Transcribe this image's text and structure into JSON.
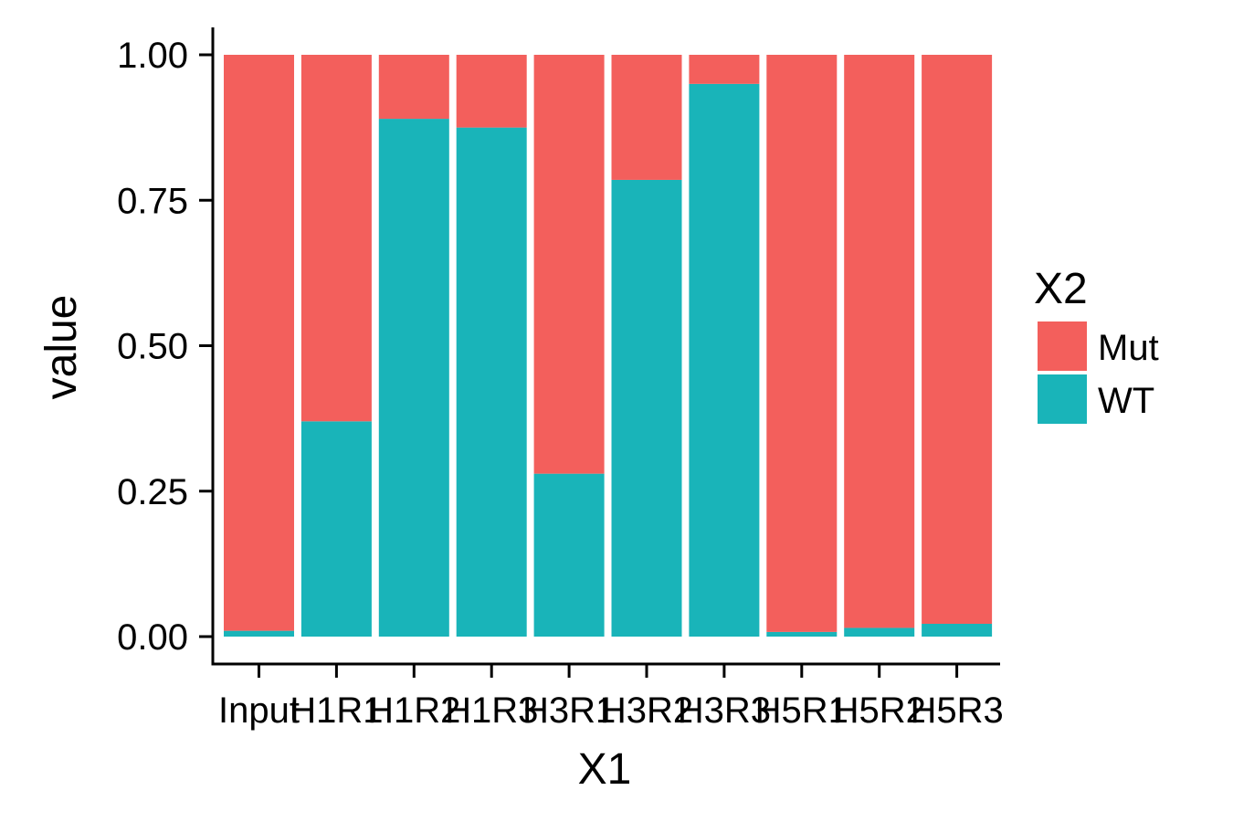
{
  "chart_data": {
    "type": "bar",
    "stacked": true,
    "categories": [
      "Input",
      "H1R1",
      "H1R2",
      "H1R3",
      "H3R1",
      "H3R2",
      "H3R3",
      "H5R1",
      "H5R2",
      "H5R3"
    ],
    "xlabel": "X1",
    "ylabel": "value",
    "ylim": [
      0,
      1
    ],
    "yticks": [
      "0.00",
      "0.25",
      "0.50",
      "0.75",
      "1.00"
    ],
    "ytick_values": [
      0,
      0.25,
      0.5,
      0.75,
      1.0
    ],
    "legend_title": "X2",
    "legend_position": "right",
    "grid": false,
    "series": [
      {
        "name": "WT",
        "color": "#19B4B9",
        "values": [
          0.01,
          0.37,
          0.89,
          0.875,
          0.28,
          0.785,
          0.95,
          0.008,
          0.015,
          0.022
        ]
      },
      {
        "name": "Mut",
        "color": "#F35F5C",
        "values": [
          0.99,
          0.63,
          0.11,
          0.125,
          0.72,
          0.215,
          0.05,
          0.992,
          0.985,
          0.978
        ]
      }
    ],
    "legend_order": [
      "Mut",
      "WT"
    ]
  }
}
